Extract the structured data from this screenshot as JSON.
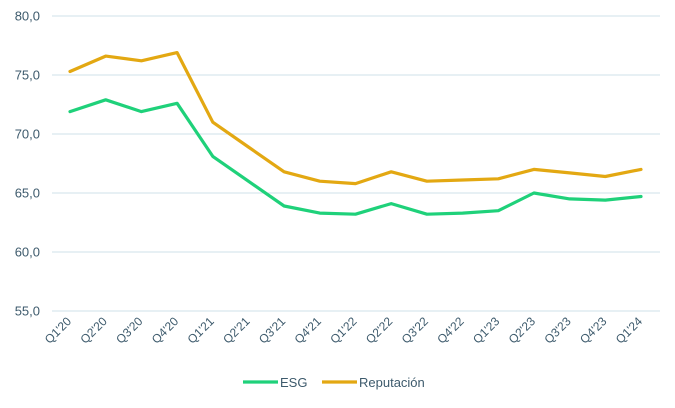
{
  "chart_data": {
    "type": "line",
    "title": "",
    "xlabel": "",
    "ylabel": "",
    "categories": [
      "Q1'20",
      "Q2'20",
      "Q3'20",
      "Q4'20",
      "Q1'21",
      "Q2'21",
      "Q3'21",
      "Q4'21",
      "Q1'22",
      "Q2'22",
      "Q3'22",
      "Q4'22",
      "Q1'23",
      "Q2'23",
      "Q3'23",
      "Q4'23",
      "Q1'24"
    ],
    "ylim": [
      55,
      80
    ],
    "yticks": [
      "55,0",
      "60,0",
      "65,0",
      "70,0",
      "75,0",
      "80,0"
    ],
    "ytick_values": [
      55,
      60,
      65,
      70,
      75,
      80
    ],
    "grid": "horizontal",
    "legend_position": "bottom",
    "series": [
      {
        "name": "ESG",
        "color": "#1fd17a",
        "values": [
          71.9,
          72.9,
          71.9,
          72.6,
          68.1,
          66.0,
          63.9,
          63.3,
          63.2,
          64.1,
          63.2,
          63.3,
          63.5,
          65.0,
          64.5,
          64.4,
          64.7
        ]
      },
      {
        "name": "Reputación",
        "color": "#e3a812",
        "values": [
          75.3,
          76.6,
          76.2,
          76.9,
          71.0,
          68.9,
          66.8,
          66.0,
          65.8,
          66.8,
          66.0,
          66.1,
          66.2,
          67.0,
          66.7,
          66.4,
          67.0
        ]
      }
    ]
  }
}
